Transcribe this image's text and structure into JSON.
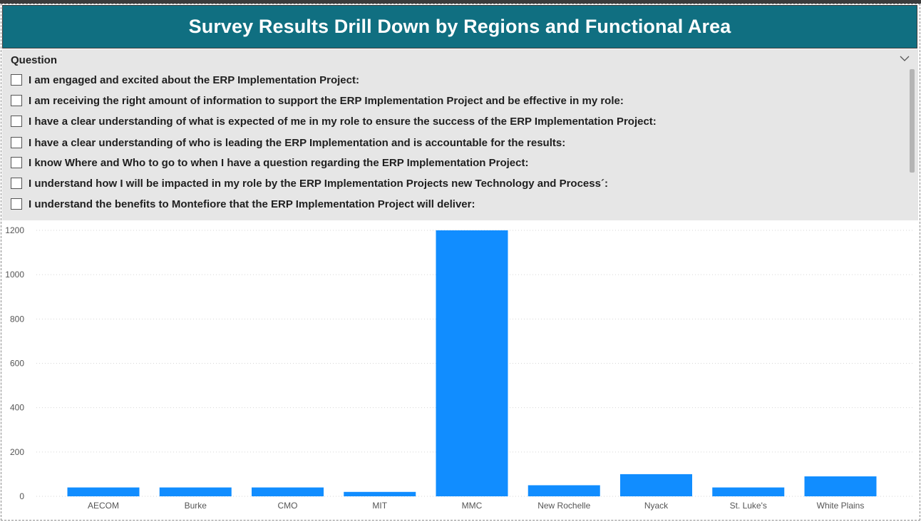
{
  "header": {
    "title": "Survey Results Drill Down by Regions and Functional Area"
  },
  "slicer": {
    "title": "Question",
    "items": [
      {
        "label": "I am engaged and excited about the ERP Implementation Project:",
        "checked": false
      },
      {
        "label": "I am receiving the right amount of information to support the ERP Implementation Project and be effective in my role:",
        "checked": false
      },
      {
        "label": "I have a clear understanding of what is expected of me in my role to ensure the success of the ERP Implementation Project:",
        "checked": false
      },
      {
        "label": "I have a clear understanding of who is leading the ERP Implementation and is accountable for the results:",
        "checked": false
      },
      {
        "label": "I know Where and Who to go to when I have a question regarding the ERP Implementation Project:",
        "checked": false
      },
      {
        "label": "I understand how I will be impacted in my role by the ERP Implementation Projects new Technology and Process´:",
        "checked": false
      },
      {
        "label": "I understand the benefits to Montefiore that the ERP Implementation Project will deliver:",
        "checked": false
      }
    ]
  },
  "chart_data": {
    "type": "bar",
    "categories": [
      "AECOM",
      "Burke",
      "CMO",
      "MIT",
      "MMC",
      "New Rochelle",
      "Nyack",
      "St. Luke's",
      "White Plains"
    ],
    "values": [
      40,
      40,
      40,
      20,
      1200,
      50,
      100,
      40,
      90
    ],
    "ylim": [
      0,
      1200
    ],
    "yticks": [
      0,
      200,
      400,
      600,
      800,
      1000,
      1200
    ],
    "grid": true,
    "bar_color": "#118dff"
  }
}
